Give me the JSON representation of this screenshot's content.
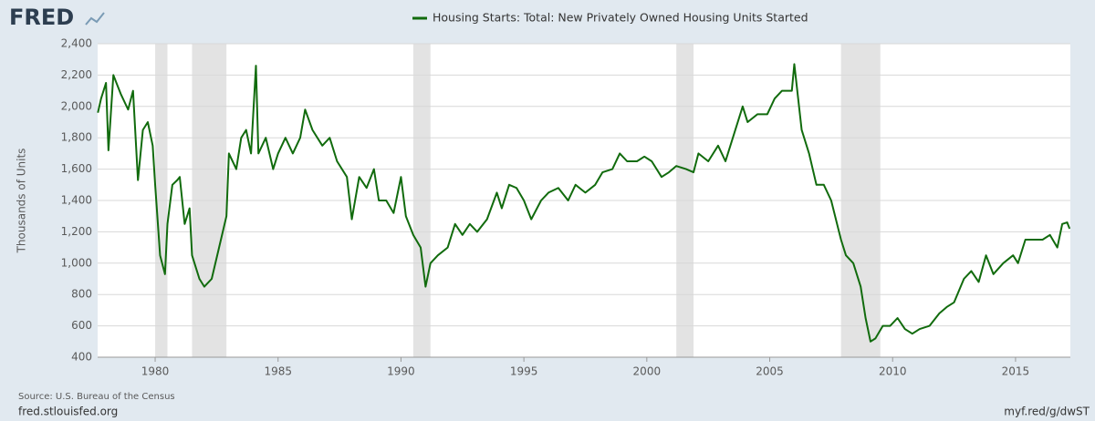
{
  "brand": "FRED",
  "chart_data": {
    "type": "line",
    "y_label": "Thousands of Units",
    "source": "Source: U.S. Bureau of the Census",
    "site": "fred.stlouisfed.org",
    "short_link": "myf.red/g/dwST",
    "grid": true,
    "xlim": [
      1977.66,
      2017.23
    ],
    "ylim": [
      400,
      2400
    ],
    "xticks": [
      1980,
      1985,
      1990,
      1995,
      2000,
      2005,
      2010,
      2015
    ],
    "yticks": [
      {
        "value": 400,
        "label": "400"
      },
      {
        "value": 600,
        "label": "600"
      },
      {
        "value": 800,
        "label": "800"
      },
      {
        "value": 1000,
        "label": "1,000"
      },
      {
        "value": 1200,
        "label": "1,200"
      },
      {
        "value": 1400,
        "label": "1,400"
      },
      {
        "value": 1600,
        "label": "1,600"
      },
      {
        "value": 1800,
        "label": "1,800"
      },
      {
        "value": 2000,
        "label": "2,000"
      },
      {
        "value": 2200,
        "label": "2,200"
      },
      {
        "value": 2400,
        "label": "2,400"
      }
    ],
    "recessions": [
      [
        1980.0,
        1980.5
      ],
      [
        1981.5,
        1982.9
      ],
      [
        1990.5,
        1991.2
      ],
      [
        2001.2,
        2001.9
      ],
      [
        2007.9,
        2009.5
      ]
    ],
    "recession_color": "#e3e3e3",
    "x": [
      1977.67,
      1977.8,
      1978.0,
      1978.1,
      1978.3,
      1978.6,
      1978.9,
      1979.1,
      1979.3,
      1979.5,
      1979.7,
      1979.9,
      1980.0,
      1980.2,
      1980.4,
      1980.5,
      1980.7,
      1980.9,
      1981.0,
      1981.2,
      1981.4,
      1981.5,
      1981.8,
      1982.0,
      1982.3,
      1982.6,
      1982.9,
      1983.0,
      1983.3,
      1983.5,
      1983.7,
      1983.9,
      1984.1,
      1984.2,
      1984.5,
      1984.8,
      1985.0,
      1985.3,
      1985.6,
      1985.9,
      1986.1,
      1986.4,
      1986.8,
      1987.1,
      1987.4,
      1987.8,
      1988.0,
      1988.3,
      1988.6,
      1988.9,
      1989.1,
      1989.4,
      1989.7,
      1990.0,
      1990.2,
      1990.5,
      1990.8,
      1991.0,
      1991.2,
      1991.5,
      1991.9,
      1992.2,
      1992.5,
      1992.8,
      1993.1,
      1993.5,
      1993.9,
      1994.1,
      1994.4,
      1994.7,
      1995.0,
      1995.3,
      1995.7,
      1996.0,
      1996.4,
      1996.8,
      1997.1,
      1997.5,
      1997.9,
      1998.2,
      1998.6,
      1998.9,
      1999.2,
      1999.6,
      1999.9,
      2000.2,
      2000.6,
      2000.9,
      2001.2,
      2001.6,
      2001.9,
      2002.1,
      2002.5,
      2002.9,
      2003.2,
      2003.5,
      2003.9,
      2004.1,
      2004.5,
      2004.9,
      2005.2,
      2005.5,
      2005.9,
      2006.0,
      2006.3,
      2006.6,
      2006.9,
      2007.2,
      2007.5,
      2007.9,
      2008.1,
      2008.4,
      2008.7,
      2008.9,
      2009.1,
      2009.3,
      2009.6,
      2009.9,
      2010.2,
      2010.5,
      2010.8,
      2011.1,
      2011.5,
      2011.9,
      2012.2,
      2012.5,
      2012.9,
      2013.2,
      2013.5,
      2013.8,
      2014.1,
      2014.5,
      2014.9,
      2015.1,
      2015.4,
      2015.8,
      2016.1,
      2016.4,
      2016.7,
      2016.9,
      2017.1,
      2017.2
    ],
    "series": [
      {
        "name": "Housing Starts: Total: New Privately Owned Housing Units Started",
        "color": "#116b0d",
        "values": [
          1960,
          2050,
          2150,
          1720,
          2200,
          2080,
          1980,
          2100,
          1530,
          1850,
          1900,
          1750,
          1500,
          1050,
          930,
          1250,
          1500,
          1530,
          1550,
          1250,
          1350,
          1050,
          900,
          850,
          900,
          1100,
          1300,
          1700,
          1600,
          1800,
          1850,
          1700,
          2260,
          1700,
          1800,
          1600,
          1700,
          1800,
          1700,
          1800,
          1980,
          1850,
          1750,
          1800,
          1650,
          1550,
          1280,
          1550,
          1480,
          1600,
          1400,
          1400,
          1320,
          1550,
          1300,
          1180,
          1100,
          850,
          1000,
          1050,
          1100,
          1250,
          1180,
          1250,
          1200,
          1280,
          1450,
          1350,
          1500,
          1480,
          1400,
          1280,
          1400,
          1450,
          1480,
          1400,
          1500,
          1450,
          1500,
          1580,
          1600,
          1700,
          1650,
          1650,
          1680,
          1650,
          1550,
          1580,
          1620,
          1600,
          1580,
          1700,
          1650,
          1750,
          1650,
          1800,
          2000,
          1900,
          1950,
          1950,
          2050,
          2100,
          2100,
          2270,
          1850,
          1700,
          1500,
          1500,
          1400,
          1150,
          1050,
          1000,
          850,
          650,
          500,
          520,
          600,
          600,
          650,
          580,
          550,
          580,
          600,
          680,
          720,
          750,
          900,
          950,
          880,
          1050,
          930,
          1000,
          1050,
          1000,
          1150,
          1150,
          1150,
          1180,
          1100,
          1250,
          1260,
          1220
        ]
      }
    ]
  }
}
